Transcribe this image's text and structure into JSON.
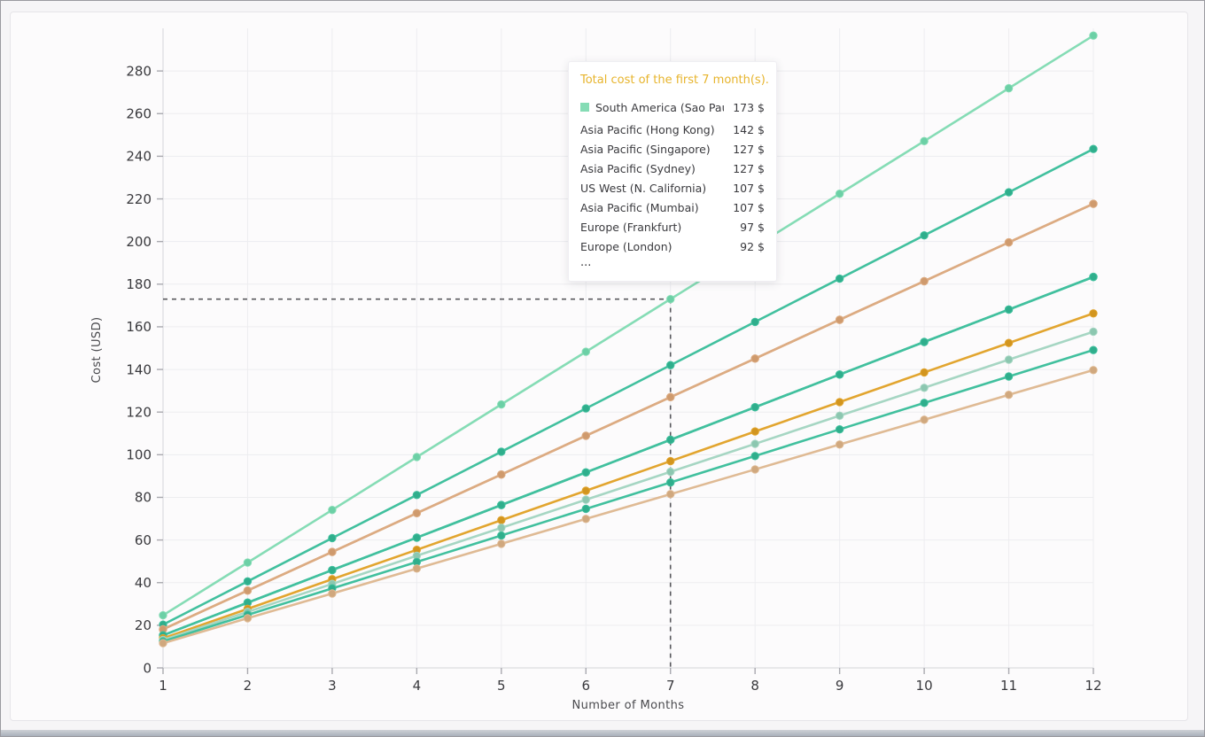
{
  "window": {
    "background": "#f6f5f7",
    "panel_background": "#fcfbfc"
  },
  "chart_data": {
    "type": "line",
    "title": "",
    "xlabel": "Number of Months",
    "ylabel": "Cost (USD)",
    "x": [
      1,
      2,
      3,
      4,
      5,
      6,
      7,
      8,
      9,
      10,
      11,
      12
    ],
    "xlim": [
      1,
      12
    ],
    "ylim": [
      0,
      300
    ],
    "yticks": [
      0,
      20,
      40,
      60,
      80,
      100,
      120,
      140,
      160,
      180,
      200,
      220,
      240,
      260,
      280
    ],
    "grid": true,
    "legend_position": "tooltip-only",
    "style": {
      "grid_color": "#ededf0",
      "axis_color": "#dcdce0",
      "tick_color": "#a9a9af",
      "text_color": "#39393d",
      "dash_color": "#58585c"
    },
    "crosshair": {
      "x": 7,
      "y": 173,
      "line_style": "dashed"
    },
    "series": [
      {
        "name": "South America (Sao Paulo)",
        "total_at_7": 173,
        "color": "#85dcb5",
        "dot_color": "#6cd0a6",
        "values": [
          24.7,
          49.4,
          74.1,
          98.9,
          123.6,
          148.3,
          173.0,
          197.7,
          222.4,
          247.1,
          271.9,
          296.6
        ]
      },
      {
        "name": "Asia Pacific (Hong Kong)",
        "total_at_7": 142,
        "color": "#41c09e",
        "dot_color": "#2fae8c",
        "values": [
          20.3,
          40.6,
          60.9,
          81.1,
          101.4,
          121.7,
          142.0,
          162.3,
          182.6,
          202.9,
          223.1,
          243.4
        ]
      },
      {
        "name": "Asia Pacific (Singapore)",
        "total_at_7": 127,
        "color": "#dcab82",
        "dot_color": "#cf9a6d",
        "values": [
          18.1,
          36.3,
          54.4,
          72.6,
          90.7,
          108.9,
          127.0,
          145.1,
          163.3,
          181.4,
          199.6,
          217.7
        ]
      },
      {
        "name": "Asia Pacific (Sydney)",
        "total_at_7": 127,
        "color": "#dcab82",
        "dot_color": "#cf9a6d",
        "values": [
          18.1,
          36.3,
          54.4,
          72.6,
          90.7,
          108.9,
          127.0,
          145.1,
          163.3,
          181.4,
          199.6,
          217.7
        ]
      },
      {
        "name": "US West (N. California)",
        "total_at_7": 107,
        "color": "#41c09e",
        "dot_color": "#2fae8c",
        "values": [
          15.3,
          30.6,
          45.9,
          61.1,
          76.4,
          91.7,
          107.0,
          122.3,
          137.6,
          152.9,
          168.1,
          183.4
        ]
      },
      {
        "name": "Asia Pacific (Mumbai)",
        "total_at_7": 107,
        "color": "#41c09e",
        "dot_color": "#2fae8c",
        "values": [
          15.3,
          30.6,
          45.9,
          61.1,
          76.4,
          91.7,
          107.0,
          122.3,
          137.6,
          152.9,
          168.1,
          183.4
        ]
      },
      {
        "name": "Europe (Frankfurt)",
        "total_at_7": 97,
        "color": "#e2a52f",
        "dot_color": "#d2951f",
        "values": [
          13.9,
          27.7,
          41.6,
          55.4,
          69.3,
          83.1,
          97.0,
          110.9,
          124.7,
          138.6,
          152.4,
          166.3
        ]
      },
      {
        "name": "Europe (London)",
        "total_at_7": 92,
        "color": "#a6d6c3",
        "dot_color": "#8cc7b0",
        "values": [
          13.1,
          26.3,
          39.4,
          52.6,
          65.7,
          78.9,
          92.0,
          105.1,
          118.3,
          131.4,
          144.6,
          157.7
        ]
      },
      {
        "name": "",
        "total_at_7": 87,
        "color": "#41c09e",
        "dot_color": "#2fae8c",
        "values": [
          12.4,
          24.9,
          37.3,
          49.7,
          62.1,
          74.6,
          87.0,
          99.4,
          111.9,
          124.3,
          136.7,
          149.1
        ]
      },
      {
        "name": "",
        "total_at_7": 81,
        "color": "#dfba94",
        "dot_color": "#d0a87e",
        "values": [
          11.6,
          23.3,
          34.9,
          46.6,
          58.2,
          69.9,
          81.5,
          93.1,
          104.8,
          116.4,
          128.1,
          139.7
        ]
      }
    ]
  },
  "tooltip": {
    "title": "Total cost of the first 7 month(s).",
    "title_color": "#e7b42c",
    "rows": [
      {
        "label": "South America (Sao Paulo)",
        "value": "173 $",
        "swatch": "#85dcb5"
      },
      {
        "label": "Asia Pacific (Hong Kong)",
        "value": "142 $"
      },
      {
        "label": "Asia Pacific (Singapore)",
        "value": "127 $"
      },
      {
        "label": "Asia Pacific (Sydney)",
        "value": "127 $"
      },
      {
        "label": "US West (N. California)",
        "value": "107 $"
      },
      {
        "label": "Asia Pacific (Mumbai)",
        "value": "107 $"
      },
      {
        "label": "Europe (Frankfurt)",
        "value": "97 $"
      },
      {
        "label": "Europe (London)",
        "value": "92 $"
      }
    ],
    "more_indicator": "..."
  }
}
